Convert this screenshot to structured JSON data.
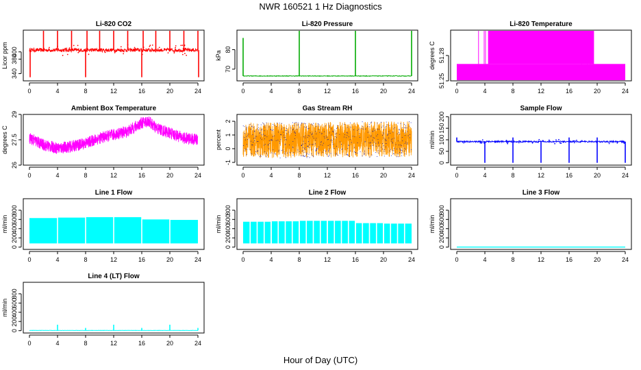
{
  "figure": {
    "title": "NWR 160521 1 Hz Diagnostics",
    "xlabel": "Hour of Day (UTC)"
  },
  "chart_data": [
    {
      "type": "line",
      "title": "Li-820 CO2",
      "xlabel": "",
      "ylabel": "Licor ppm",
      "color": "#ff0000",
      "xlim": [
        0,
        24
      ],
      "xticks": [
        "0",
        "4",
        "8",
        "12",
        "16",
        "20",
        "24"
      ],
      "ylim": [
        320,
        460
      ],
      "yticks": [
        340,
        380,
        400
      ],
      "baseline": 405,
      "noise": 5,
      "spikes": [
        [
          0.1,
          330
        ],
        [
          2.0,
          460
        ],
        [
          4.0,
          460
        ],
        [
          6.0,
          460
        ],
        [
          8.0,
          330
        ],
        [
          8.2,
          460
        ],
        [
          10.0,
          460
        ],
        [
          12.0,
          460
        ],
        [
          14.0,
          460
        ],
        [
          16.0,
          330
        ],
        [
          16.2,
          460
        ],
        [
          18.0,
          460
        ],
        [
          20.0,
          460
        ],
        [
          22.0,
          460
        ],
        [
          24.0,
          460
        ],
        [
          24.1,
          330
        ]
      ]
    },
    {
      "type": "line",
      "title": "Li-820 Pressure",
      "xlabel": "",
      "ylabel": "kPa",
      "color": "#00aa00",
      "xlim": [
        0,
        24
      ],
      "xticks": [
        "0",
        "4",
        "8",
        "12",
        "16",
        "20",
        "24"
      ],
      "ylim": [
        64,
        90
      ],
      "yticks": [
        70,
        80
      ],
      "baseline": 66.5,
      "noise": 0.15,
      "spikes": [
        [
          0,
          86
        ],
        [
          8,
          90
        ],
        [
          16,
          90
        ],
        [
          24,
          90
        ]
      ]
    },
    {
      "type": "band",
      "title": "Li-820 Temperature",
      "xlabel": "",
      "ylabel": "degrees C",
      "color": "#ff00ff",
      "xlim": [
        0,
        24
      ],
      "xticks": [
        "0",
        "4",
        "8",
        "12",
        "16",
        "20",
        "24"
      ],
      "ylim": [
        51.25,
        51.31
      ],
      "yticks": [
        51.25,
        51.28
      ],
      "band_low": 51.25,
      "band_high": 51.27,
      "hi_level": 51.31,
      "hi_range": [
        4.5,
        19.5
      ],
      "hi_edges": [
        3.1,
        3.9,
        4.1,
        4.5,
        17.8,
        18.6,
        19.0,
        19.5
      ]
    },
    {
      "type": "noisy",
      "title": "Ambient Box Temperature",
      "xlabel": "",
      "ylabel": "degrees C",
      "color": "#ff00ff",
      "xlim": [
        0,
        24
      ],
      "xticks": [
        "0",
        "4",
        "8",
        "12",
        "16",
        "20",
        "24"
      ],
      "ylim": [
        26.0,
        29.0
      ],
      "yticks": [
        26.0,
        27.5,
        29.0
      ],
      "trend": [
        [
          0,
          27.6
        ],
        [
          2,
          27.2
        ],
        [
          4,
          27.0
        ],
        [
          6,
          27.1
        ],
        [
          8,
          27.3
        ],
        [
          10,
          27.6
        ],
        [
          12,
          27.8
        ],
        [
          14,
          28.0
        ],
        [
          16,
          28.5
        ],
        [
          17,
          28.6
        ],
        [
          18,
          28.2
        ],
        [
          20,
          27.9
        ],
        [
          22,
          27.6
        ],
        [
          24,
          27.5
        ]
      ],
      "noise": 0.7
    },
    {
      "type": "noisy",
      "title": "Gas Stream RH",
      "xlabel": "",
      "ylabel": "percent",
      "color": "#ff9900",
      "xlim": [
        0,
        24
      ],
      "xticks": [
        "0",
        "4",
        "8",
        "12",
        "16",
        "20",
        "24"
      ],
      "ylim": [
        -1.2,
        2.5
      ],
      "yticks": [
        -1,
        0,
        1,
        2
      ],
      "trend": [
        [
          0,
          0.6
        ],
        [
          24,
          0.7
        ]
      ],
      "noise": 2.6,
      "dot_color": "#0000aa"
    },
    {
      "type": "line",
      "title": "Sample Flow",
      "xlabel": "",
      "ylabel": "ml/min",
      "color": "#0000ff",
      "xlim": [
        0,
        24
      ],
      "xticks": [
        "0",
        "4",
        "8",
        "12",
        "16",
        "20",
        "24"
      ],
      "ylim": [
        -10,
        210
      ],
      "yticks": [
        0,
        50,
        100,
        150,
        200
      ],
      "baseline": 92,
      "noise": 3,
      "spikes": [
        [
          0,
          110
        ],
        [
          4,
          0
        ],
        [
          8,
          0
        ],
        [
          8.0,
          110
        ],
        [
          12,
          0
        ],
        [
          16,
          0
        ],
        [
          16.0,
          110
        ],
        [
          20,
          0
        ],
        [
          20.0,
          110
        ],
        [
          24,
          0
        ]
      ]
    },
    {
      "type": "blocks",
      "title": "Line 1 Flow",
      "xlabel": "",
      "ylabel": "ml/min",
      "color": "#00ffff",
      "xlim": [
        0,
        24
      ],
      "xticks": [
        "0",
        "4",
        "8",
        "12",
        "16",
        "20",
        "24"
      ],
      "ylim": [
        -50,
        1050
      ],
      "yticks": [
        0,
        200,
        400,
        600,
        800
      ],
      "low": 80,
      "segments": [
        [
          0,
          4,
          630
        ],
        [
          4,
          8,
          640
        ],
        [
          8,
          12,
          650
        ],
        [
          12,
          16,
          650
        ],
        [
          16,
          20,
          600
        ],
        [
          20,
          24,
          590
        ]
      ]
    },
    {
      "type": "blocks",
      "title": "Line 2 Flow",
      "xlabel": "",
      "ylabel": "ml/min",
      "color": "#00ffff",
      "xlim": [
        0,
        24
      ],
      "xticks": [
        "0",
        "4",
        "8",
        "12",
        "16",
        "20",
        "24"
      ],
      "ylim": [
        -50,
        1050
      ],
      "yticks": [
        0,
        200,
        400,
        600,
        800
      ],
      "low": 80,
      "segments": [
        [
          0,
          4,
          550
        ],
        [
          4,
          8,
          560
        ],
        [
          8,
          12,
          570
        ],
        [
          12,
          16,
          570
        ],
        [
          16,
          20,
          520
        ],
        [
          20,
          24,
          510
        ]
      ],
      "gap_step": 1.0
    },
    {
      "type": "flat",
      "title": "Line 3 Flow",
      "xlabel": "",
      "ylabel": "ml/min",
      "color": "#00ffff",
      "xlim": [
        0,
        24
      ],
      "xticks": [
        "0",
        "4",
        "8",
        "12",
        "16",
        "20",
        "24"
      ],
      "ylim": [
        -50,
        1050
      ],
      "yticks": [
        0,
        200,
        400,
        600,
        800
      ],
      "baseline": 0
    },
    {
      "type": "line",
      "title": "Line 4 (LT) Flow",
      "xlabel": "",
      "ylabel": "ml/min",
      "color": "#00ffff",
      "xlim": [
        0,
        24
      ],
      "xticks": [
        "0",
        "4",
        "8",
        "12",
        "16",
        "20",
        "24"
      ],
      "ylim": [
        -50,
        1050
      ],
      "yticks": [
        0,
        200,
        400,
        600,
        800
      ],
      "baseline": 5,
      "noise": 3,
      "spikes": [
        [
          4,
          130
        ],
        [
          8,
          60
        ],
        [
          12,
          130
        ],
        [
          16,
          60
        ],
        [
          20,
          130
        ],
        [
          24,
          60
        ]
      ]
    }
  ]
}
